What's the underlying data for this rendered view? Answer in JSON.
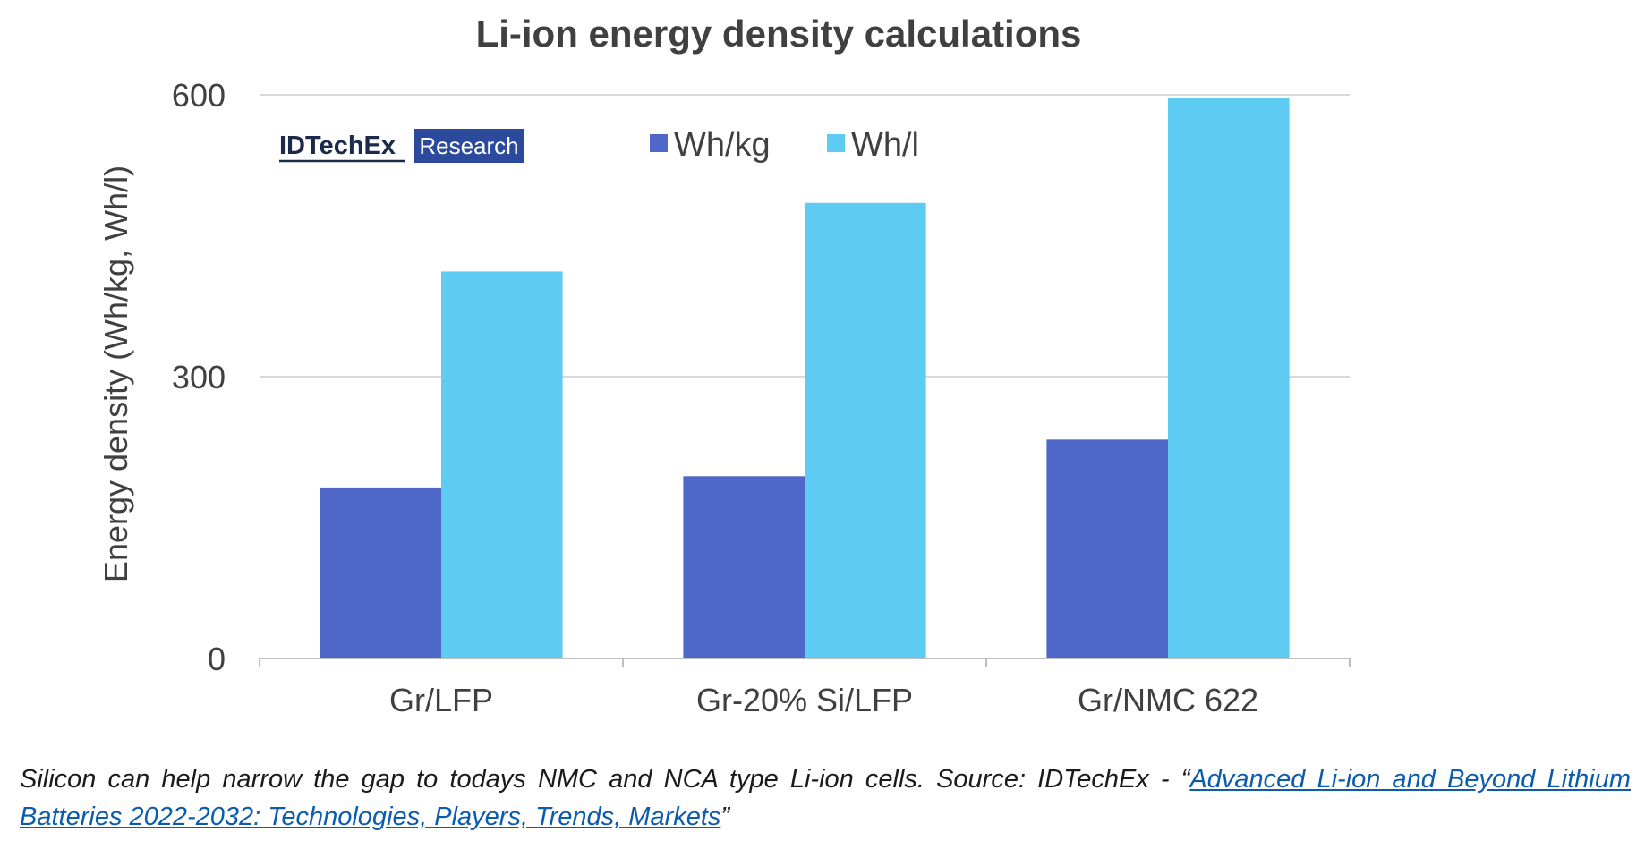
{
  "chart_data": {
    "type": "bar",
    "title": "Li-ion energy density calculations",
    "xlabel": "",
    "ylabel": "Energy density (Wh/kg, Wh/l)",
    "categories": [
      "Gr/LFP",
      "Gr-20% Si/LFP",
      "Gr/NMC 622"
    ],
    "series": [
      {
        "name": "Wh/kg",
        "color": "#4f67c8",
        "values": [
          182,
          194,
          233
        ]
      },
      {
        "name": "Wh/l",
        "color": "#5ecbf3",
        "values": [
          412,
          485,
          597
        ]
      }
    ],
    "ylim": [
      0,
      600
    ],
    "yticks": [
      0,
      300,
      600
    ],
    "grid": true,
    "legend_position": "top"
  },
  "logo": {
    "name": "IDTechEx",
    "badge": "Research",
    "colors": {
      "text": "#1b2a4a",
      "badge": "#2b4a9b"
    }
  },
  "caption": {
    "prefix": "Silicon can help narrow the gap to todays NMC and NCA type Li-ion cells. Source: IDTechEx - “",
    "link_text": "Advanced Li-ion and Beyond Lithium Batteries 2022-2032: Technologies, Players, Trends, Markets",
    "suffix": "”"
  }
}
